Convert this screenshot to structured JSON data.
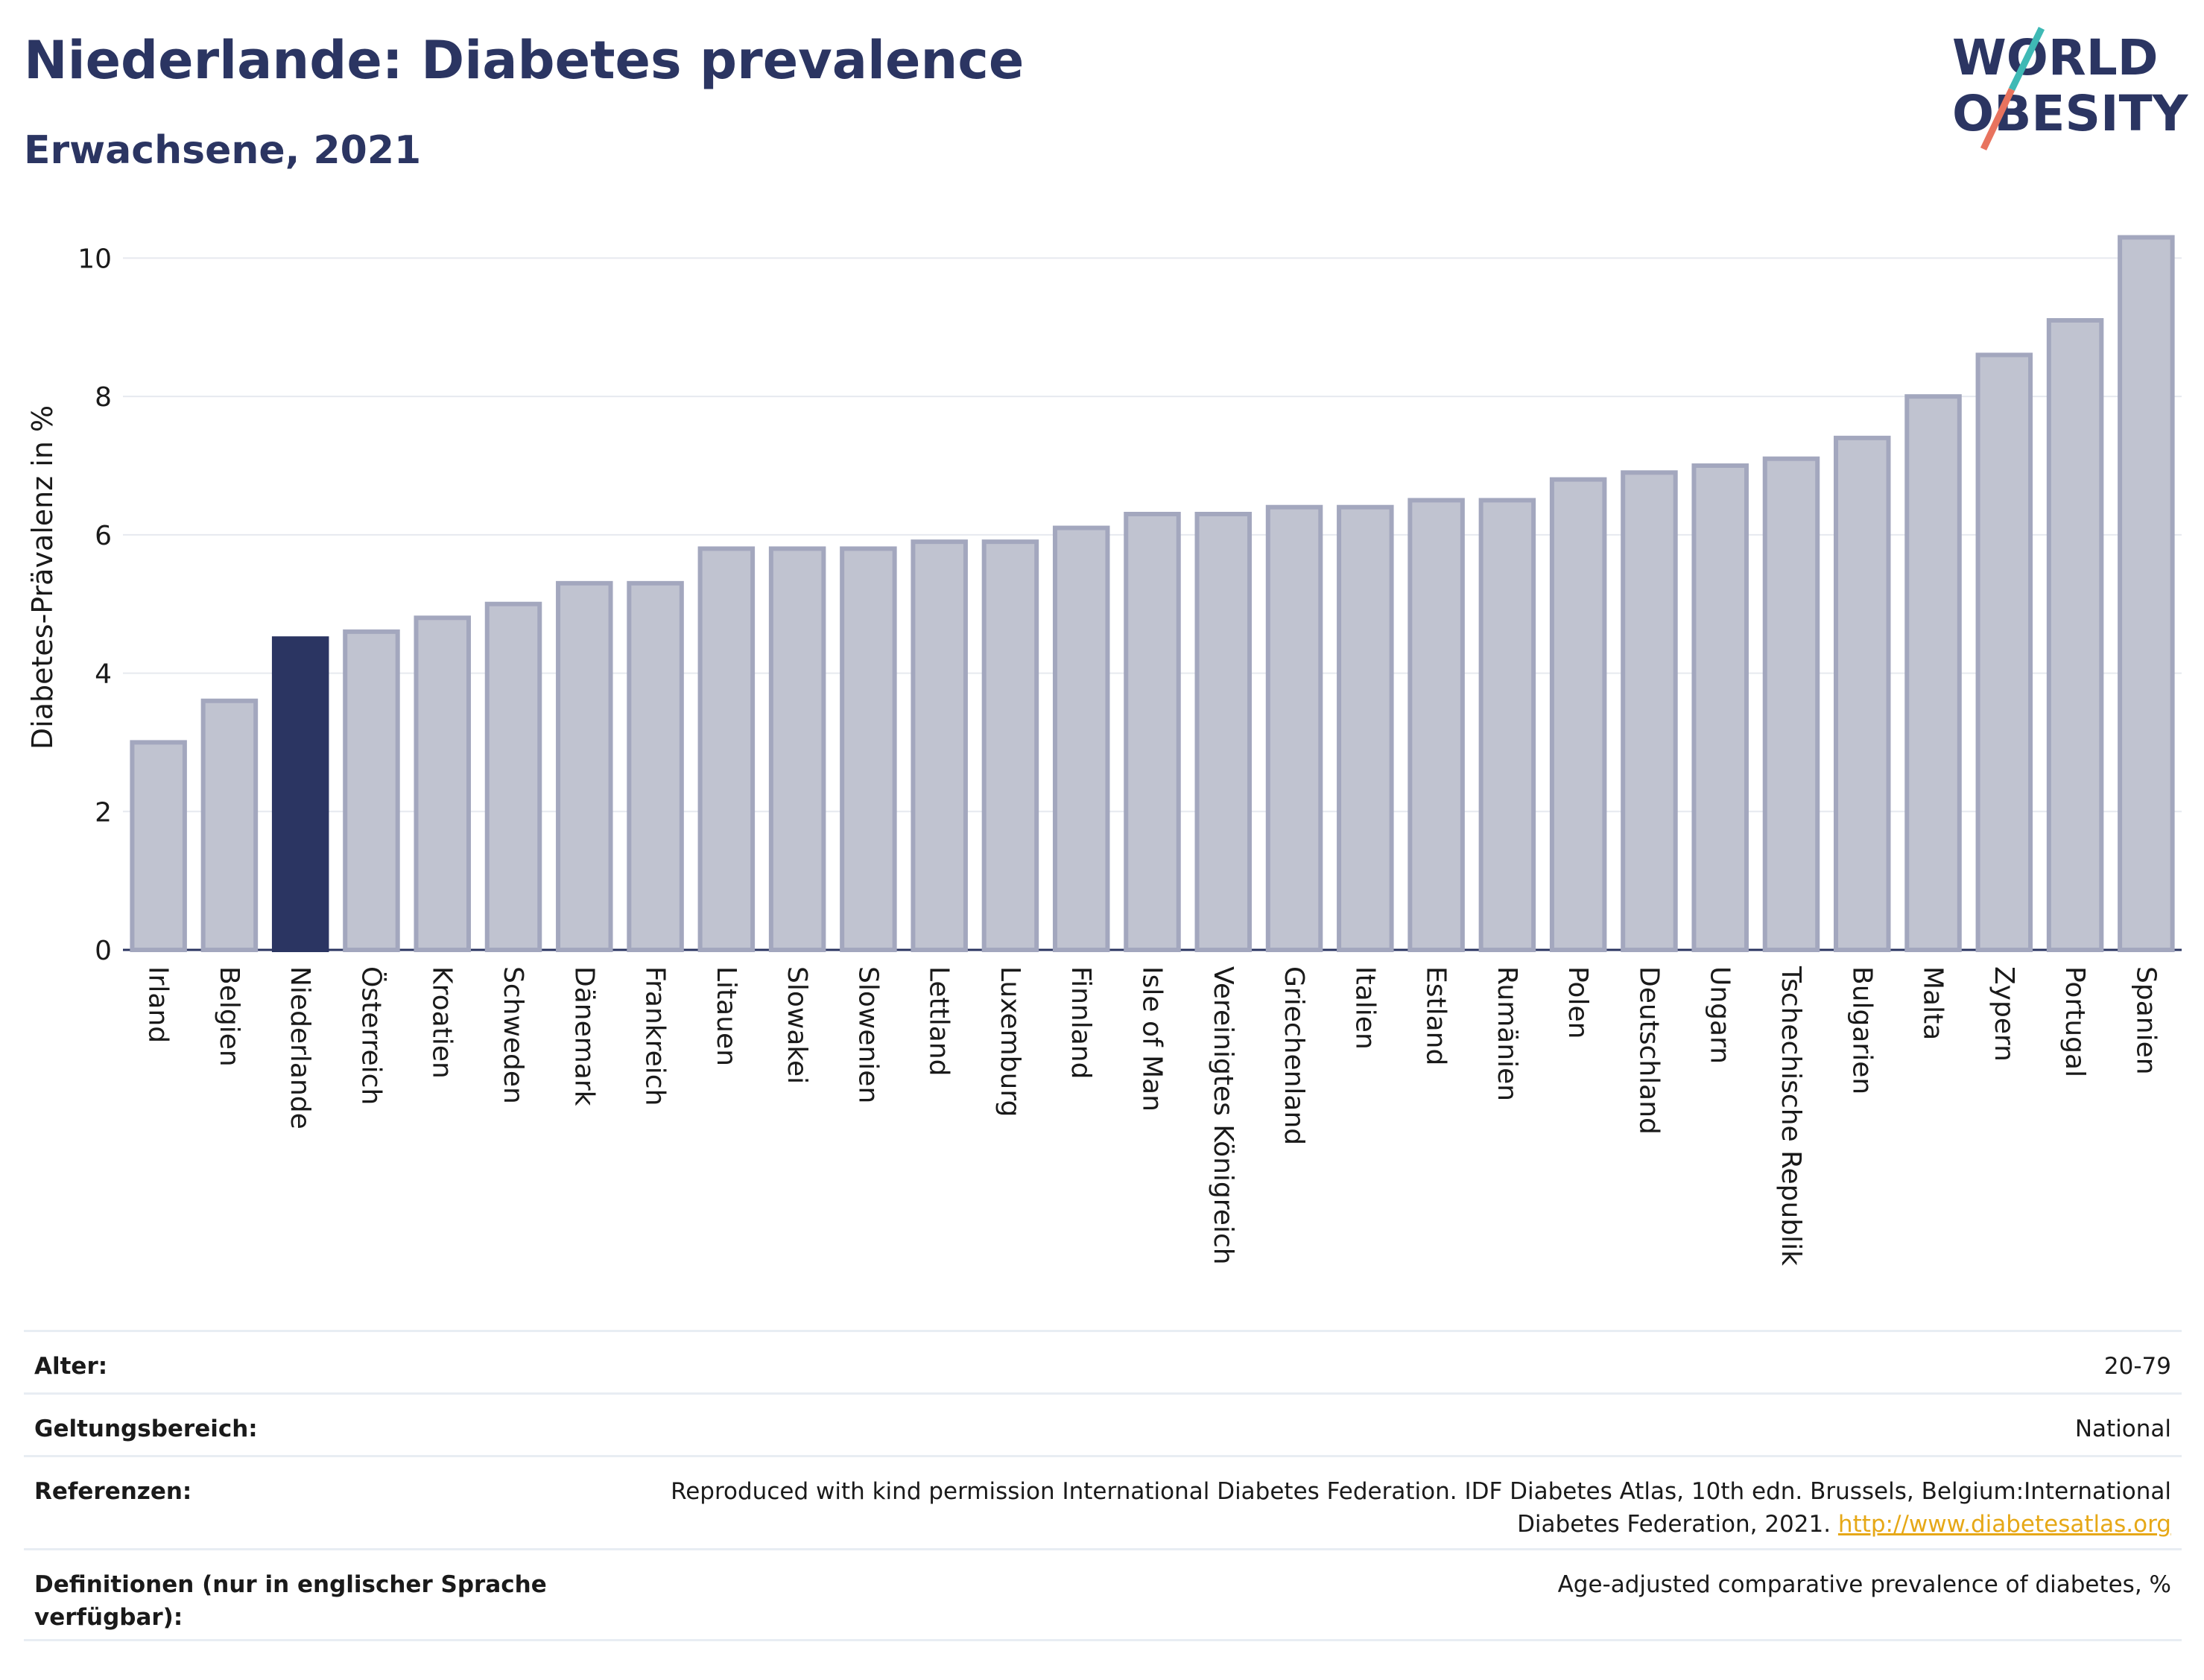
{
  "header": {
    "title": "Niederlande: Diabetes prevalence",
    "subtitle": "Erwachsene, 2021"
  },
  "logo": {
    "line1": "WORLD",
    "line2": "OBESITY",
    "accent_teal": "#3fb9b5",
    "accent_coral": "#e8735e",
    "text_color": "#2b3562"
  },
  "chart_data": {
    "type": "bar",
    "title": "Niederlande: Diabetes prevalence",
    "subtitle": "Erwachsene, 2021",
    "xlabel": "",
    "ylabel": "Diabetes-Prävalenz in %",
    "ylim": [
      0,
      10.5
    ],
    "yticks": [
      0,
      2,
      4,
      6,
      8,
      10
    ],
    "grid": true,
    "highlight": "Niederlande",
    "colors": {
      "bar": "#c0c3d0",
      "bar_border": "#a3a7be",
      "highlight": "#2b3562"
    },
    "categories": [
      "Irland",
      "Belgien",
      "Niederlande",
      "Österreich",
      "Kroatien",
      "Schweden",
      "Dänemark",
      "Frankreich",
      "Litauen",
      "Slowakei",
      "Slowenien",
      "Lettland",
      "Luxemburg",
      "Finnland",
      "Isle of Man",
      "Vereinigtes Königreich",
      "Griechenland",
      "Italien",
      "Estland",
      "Rumänien",
      "Polen",
      "Deutschland",
      "Ungarn",
      "Tschechische Republik",
      "Bulgarien",
      "Malta",
      "Zypern",
      "Portugal",
      "Spanien"
    ],
    "values": [
      3.0,
      3.6,
      4.5,
      4.6,
      4.8,
      5.0,
      5.3,
      5.3,
      5.8,
      5.8,
      5.8,
      5.9,
      5.9,
      6.1,
      6.3,
      6.3,
      6.4,
      6.4,
      6.5,
      6.5,
      6.8,
      6.9,
      7.0,
      7.1,
      7.4,
      8.0,
      8.6,
      9.1,
      10.3
    ]
  },
  "meta": {
    "age_label": "Alter:",
    "age_value": "20-79",
    "scope_label": "Geltungsbereich:",
    "scope_value": "National",
    "ref_label": "Referenzen:",
    "ref_value": "Reproduced with kind permission International Diabetes Federation.  IDF Diabetes Atlas, 10th edn. Brussels, Belgium:International Diabetes Federation, 2021.",
    "ref_link": "http://www.diabetesatlas.org",
    "def_label": "Definitionen (nur in englischer Sprache verfügbar):",
    "def_value": "Age-adjusted comparative prevalence of diabetes, %"
  }
}
